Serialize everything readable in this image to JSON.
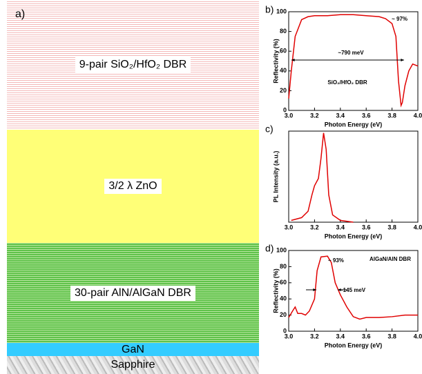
{
  "diagram": {
    "label": "a)",
    "layers": [
      "9-pair SiO₂/HfO₂ DBR",
      "3/2 λ ZnO",
      "30-pair AlN/AlGaN DBR",
      "GaN",
      "Sapphire"
    ]
  },
  "chart_data": [
    {
      "type": "line",
      "panel": "b)",
      "xlabel": "Photon Energy (eV)",
      "ylabel": "Reflectivity (%)",
      "x": [
        3.0,
        3.02,
        3.05,
        3.1,
        3.15,
        3.2,
        3.3,
        3.4,
        3.5,
        3.6,
        3.7,
        3.75,
        3.8,
        3.83,
        3.85,
        3.87,
        3.88,
        3.9,
        3.93,
        3.96,
        4.0
      ],
      "series": [
        {
          "color": "#e00000",
          "values": [
            12,
            40,
            75,
            92,
            95,
            96,
            96,
            97,
            97,
            96,
            95,
            93,
            88,
            75,
            30,
            5,
            8,
            25,
            40,
            47,
            45
          ]
        }
      ],
      "xlim": [
        3.0,
        4.0
      ],
      "xticks": [
        {
          "value": 3,
          "label": "3.0"
        },
        3.2,
        3.4,
        3.6,
        3.8,
        {
          "value": 4,
          "label": "4.0"
        }
      ],
      "ylim": [
        0,
        100
      ],
      "yticks": [
        0,
        20,
        40,
        60,
        80,
        100
      ],
      "annotations": [
        "~ 97%",
        "~790 meV",
        "SiO₂/HfO₂ DBR"
      ]
    },
    {
      "type": "line",
      "panel": "c)",
      "xlabel": "Photon Energy (eV)",
      "ylabel": "PL Intensity (a.u.)",
      "x": [
        3.02,
        3.1,
        3.15,
        3.18,
        3.2,
        3.23,
        3.25,
        3.27,
        3.29,
        3.31,
        3.34,
        3.4,
        3.5
      ],
      "series": [
        {
          "color": "#e00000",
          "values": [
            0.02,
            0.05,
            0.12,
            0.3,
            0.4,
            0.48,
            0.7,
            0.98,
            0.8,
            0.3,
            0.08,
            0.02,
            0.0
          ]
        }
      ],
      "xlim": [
        3.0,
        4.0
      ],
      "xticks": [
        {
          "value": 3,
          "label": "3.0"
        },
        3.2,
        3.4,
        3.6,
        3.8,
        {
          "value": 4,
          "label": "4.0"
        }
      ],
      "ylim": [
        0,
        1
      ],
      "annotations": []
    },
    {
      "type": "line",
      "panel": "d)",
      "xlabel": "Photon Energy (eV)",
      "ylabel": "Reflectivity (%)",
      "x": [
        3.0,
        3.03,
        3.05,
        3.07,
        3.1,
        3.13,
        3.16,
        3.2,
        3.22,
        3.25,
        3.3,
        3.33,
        3.36,
        3.4,
        3.45,
        3.5,
        3.55,
        3.6,
        3.7,
        3.8,
        3.9,
        4.0
      ],
      "series": [
        {
          "color": "#e00000",
          "values": [
            17,
            25,
            30,
            22,
            22,
            20,
            25,
            40,
            75,
            92,
            93,
            85,
            60,
            45,
            30,
            18,
            15,
            17,
            17,
            18,
            20,
            20
          ]
        }
      ],
      "xlim": [
        3.0,
        4.0
      ],
      "xticks": [
        {
          "value": 3,
          "label": "3.0"
        },
        3.2,
        3.4,
        3.6,
        3.8,
        {
          "value": 4,
          "label": "4.0"
        }
      ],
      "ylim": [
        0,
        100
      ],
      "yticks": [
        0,
        20,
        40,
        60,
        80,
        100
      ],
      "annotations": [
        "~ 93%",
        "AlGaN/AlN DBR",
        "~145 meV"
      ]
    }
  ]
}
